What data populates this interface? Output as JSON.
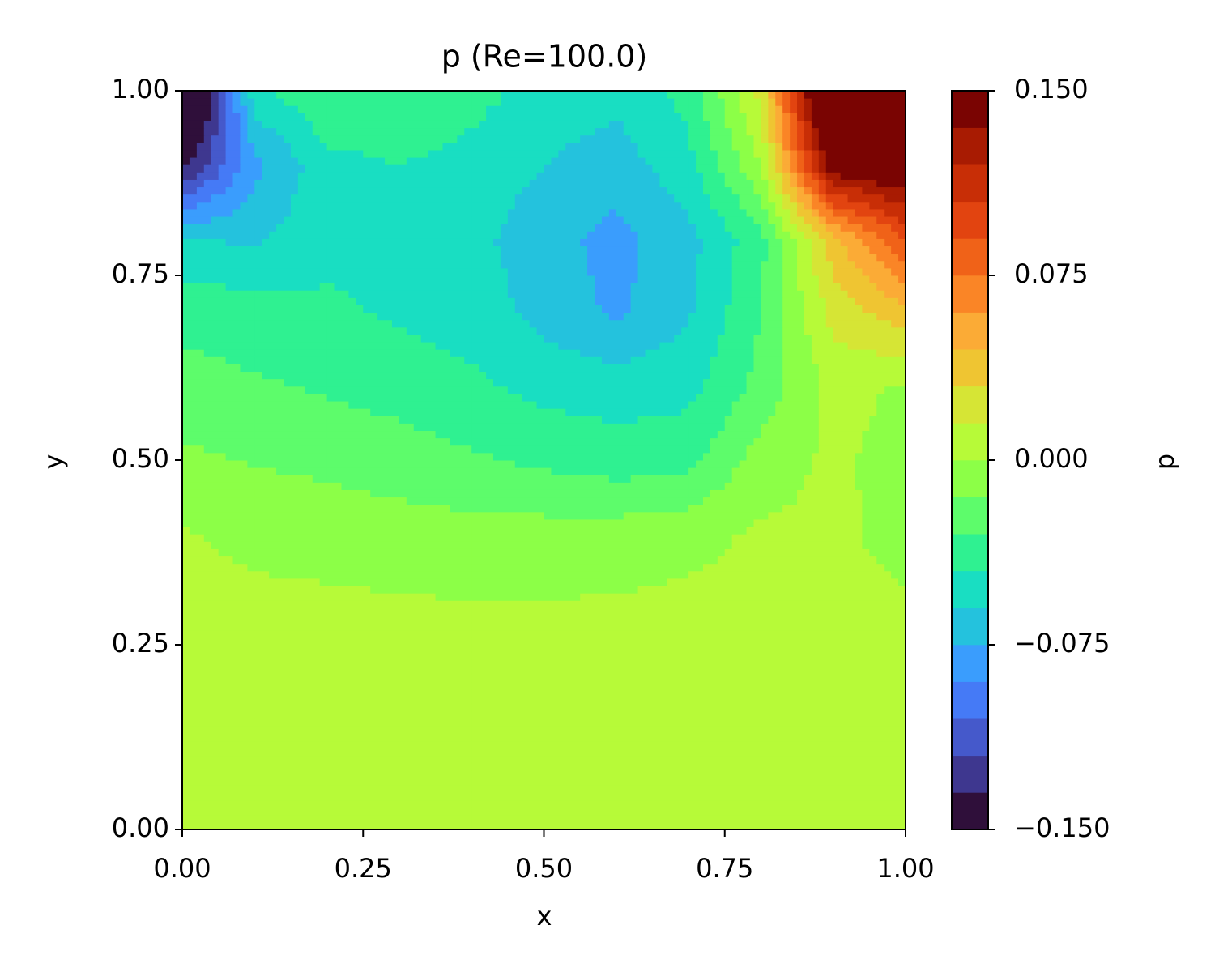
{
  "chart_data": {
    "type": "contour",
    "title": "p (Re=100.0)",
    "xlabel": "x",
    "ylabel": "y",
    "colorbar_label": "p",
    "x": [
      0,
      0.1,
      0.2,
      0.3,
      0.4,
      0.5,
      0.6,
      0.7,
      0.8,
      0.9,
      1.0
    ],
    "y": [
      0,
      0.1,
      0.2,
      0.3,
      0.4,
      0.5,
      0.6,
      0.7,
      0.8,
      0.9,
      1.0
    ],
    "z": [
      [
        0.005,
        0.005,
        0.005,
        0.005,
        0.005,
        0.005,
        0.005,
        0.005,
        0.005,
        0.005,
        0.005
      ],
      [
        0.005,
        0.005,
        0.005,
        0.005,
        0.005,
        0.005,
        0.005,
        0.005,
        0.005,
        0.005,
        0.005
      ],
      [
        0.005,
        0.005,
        0.005,
        0.005,
        0.005,
        0.005,
        0.005,
        0.005,
        0.005,
        0.005,
        0.005
      ],
      [
        0.003,
        0.003,
        0.003,
        0.002,
        0.001,
        0.001,
        0.002,
        0.003,
        0.004,
        0.004,
        0.002
      ],
      [
        0.001,
        -0.003,
        -0.006,
        -0.008,
        -0.009,
        -0.009,
        -0.008,
        -0.004,
        0.002,
        0.003,
        -0.005
      ],
      [
        -0.012,
        -0.016,
        -0.019,
        -0.023,
        -0.028,
        -0.033,
        -0.038,
        -0.035,
        -0.008,
        0.003,
        -0.006
      ],
      [
        -0.025,
        -0.028,
        -0.032,
        -0.036,
        -0.042,
        -0.05,
        -0.052,
        -0.05,
        -0.025,
        0.005,
        -0.002
      ],
      [
        -0.034,
        -0.038,
        -0.042,
        -0.047,
        -0.052,
        -0.065,
        -0.078,
        -0.062,
        -0.03,
        0.02,
        0.04
      ],
      [
        -0.06,
        -0.062,
        -0.05,
        -0.05,
        -0.055,
        -0.07,
        -0.08,
        -0.065,
        -0.035,
        0.04,
        0.09
      ],
      [
        -0.14,
        -0.08,
        -0.05,
        -0.045,
        -0.05,
        -0.06,
        -0.068,
        -0.05,
        0.0,
        0.15,
        0.16
      ],
      [
        -0.2,
        -0.05,
        -0.03,
        -0.03,
        -0.04,
        -0.05,
        -0.055,
        -0.04,
        0.02,
        0.2,
        0.2
      ]
    ],
    "levels": [
      -0.15,
      -0.135,
      -0.12,
      -0.105,
      -0.09,
      -0.075,
      -0.06,
      -0.045,
      -0.03,
      -0.015,
      0,
      0.015,
      0.03,
      0.045,
      0.06,
      0.075,
      0.09,
      0.105,
      0.12,
      0.135,
      0.15
    ],
    "colors": [
      "#2f0f3a",
      "#3e378f",
      "#4559cb",
      "#457af6",
      "#3a9dfd",
      "#24c2dd",
      "#19dec2",
      "#2ff191",
      "#5dfc6b",
      "#8cff47",
      "#b7fa38",
      "#d6e535",
      "#efc532",
      "#fbab36",
      "#fa8526",
      "#f06218",
      "#e24410",
      "#c82e06",
      "#a81b02",
      "#7a0402"
    ],
    "xlim": [
      0,
      1
    ],
    "ylim": [
      0,
      1
    ],
    "xticks": [
      {
        "value": 0,
        "label": "0.00"
      },
      {
        "value": 0.25,
        "label": "0.25"
      },
      {
        "value": 0.5,
        "label": "0.50"
      },
      {
        "value": 0.75,
        "label": "0.75"
      },
      {
        "value": 1,
        "label": "1.00"
      }
    ],
    "yticks": [
      {
        "value": 0,
        "label": "0.00"
      },
      {
        "value": 0.25,
        "label": "0.25"
      },
      {
        "value": 0.5,
        "label": "0.50"
      },
      {
        "value": 0.75,
        "label": "0.75"
      },
      {
        "value": 1,
        "label": "1.00"
      }
    ],
    "cticks": [
      {
        "value": -0.15,
        "label": "−0.150"
      },
      {
        "value": -0.075,
        "label": "−0.075"
      },
      {
        "value": 0,
        "label": "0.000"
      },
      {
        "value": 0.075,
        "label": "0.075"
      },
      {
        "value": 0.15,
        "label": "0.150"
      }
    ]
  }
}
